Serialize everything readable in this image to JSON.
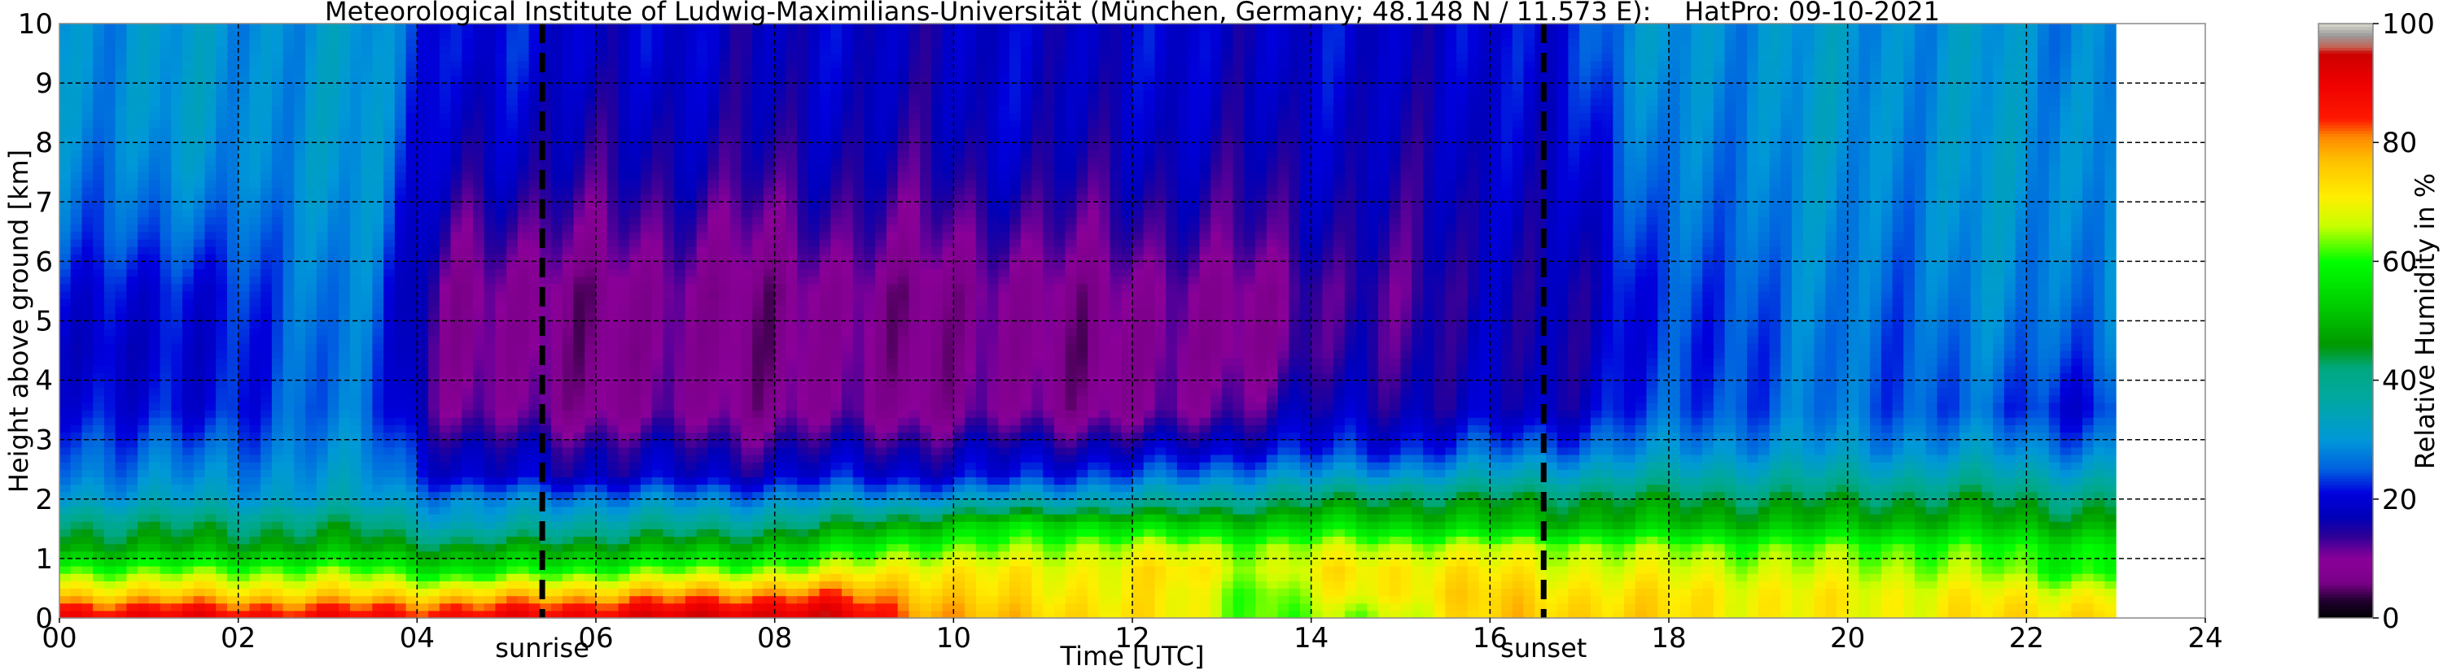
{
  "chart_data": {
    "type": "heatmap",
    "title": "Meteorological Institute of Ludwig-Maximilians-Universität (München, Germany; 48.148 N / 11.573 E):    HatPro: 09-10-2021",
    "xlabel": "Time [UTC]",
    "ylabel": "Height above ground [km]",
    "colorbar_label": "Relative Humidity in %",
    "xlim": [
      0,
      24
    ],
    "ylim": [
      0,
      10
    ],
    "clim": [
      0,
      100
    ],
    "x_ticks": [
      "00",
      "02",
      "04",
      "06",
      "08",
      "10",
      "12",
      "14",
      "16",
      "18",
      "20",
      "22",
      "24"
    ],
    "x_tick_values": [
      0,
      2,
      4,
      6,
      8,
      10,
      12,
      14,
      16,
      18,
      20,
      22,
      24
    ],
    "y_ticks": [
      "0",
      "1",
      "2",
      "3",
      "4",
      "5",
      "6",
      "7",
      "8",
      "9",
      "10"
    ],
    "colorbar_ticks": [
      "0",
      "20",
      "40",
      "60",
      "80",
      "100"
    ],
    "grid": true,
    "annotations": [
      {
        "label": "sunrise",
        "time": 5.4
      },
      {
        "label": "sunset",
        "time": 16.6
      }
    ],
    "data_time_range": [
      0,
      23
    ],
    "heights_km": [
      0.1,
      0.4,
      0.8,
      1.2,
      1.6,
      2.0,
      2.4,
      2.8,
      3.5,
      4.5,
      5.5,
      6.5,
      7.5,
      8.5,
      9.5
    ],
    "hour_columns": [
      [
        88,
        75,
        62,
        48,
        42,
        32,
        28,
        26,
        22,
        20,
        22,
        26,
        28,
        30,
        30
      ],
      [
        88,
        75,
        62,
        48,
        42,
        32,
        28,
        25,
        19,
        18,
        19,
        24,
        28,
        30,
        30
      ],
      [
        86,
        74,
        63,
        48,
        42,
        32,
        30,
        28,
        26,
        26,
        27,
        28,
        30,
        30,
        30
      ],
      [
        86,
        74,
        62,
        48,
        42,
        32,
        30,
        28,
        25,
        25,
        26,
        28,
        29,
        30,
        30
      ],
      [
        86,
        74,
        56,
        45,
        32,
        28,
        18,
        16,
        10,
        8,
        8,
        12,
        16,
        18,
        20
      ],
      [
        88,
        76,
        60,
        47,
        36,
        28,
        18,
        16,
        9,
        8,
        8,
        12,
        16,
        18,
        20
      ],
      [
        90,
        78,
        62,
        48,
        38,
        28,
        18,
        16,
        9,
        8,
        8,
        12,
        15,
        17,
        19
      ],
      [
        92,
        80,
        64,
        50,
        38,
        28,
        18,
        15,
        9,
        8,
        8,
        11,
        15,
        17,
        18
      ],
      [
        92,
        82,
        66,
        54,
        42,
        30,
        20,
        16,
        9,
        8,
        8,
        12,
        15,
        17,
        18
      ],
      [
        82,
        78,
        72,
        62,
        48,
        30,
        20,
        16,
        9,
        8,
        8,
        12,
        15,
        17,
        18
      ],
      [
        75,
        72,
        70,
        62,
        54,
        32,
        20,
        17,
        9,
        8,
        8,
        12,
        16,
        18,
        18
      ],
      [
        74,
        72,
        70,
        66,
        55,
        34,
        24,
        18,
        9,
        8,
        9,
        13,
        16,
        18,
        19
      ],
      [
        70,
        70,
        72,
        66,
        52,
        36,
        25,
        18,
        9,
        8,
        9,
        13,
        16,
        18,
        19
      ],
      [
        62,
        62,
        66,
        64,
        52,
        40,
        30,
        22,
        15,
        10,
        10,
        14,
        16,
        18,
        19
      ],
      [
        64,
        70,
        72,
        66,
        54,
        44,
        30,
        22,
        17,
        14,
        13,
        15,
        17,
        18,
        19
      ],
      [
        72,
        74,
        72,
        66,
        52,
        44,
        32,
        24,
        17,
        16,
        15,
        16,
        17,
        18,
        19
      ],
      [
        76,
        74,
        70,
        66,
        50,
        45,
        34,
        26,
        17,
        16,
        16,
        17,
        18,
        19,
        20
      ],
      [
        74,
        72,
        68,
        64,
        50,
        45,
        35,
        28,
        22,
        20,
        20,
        22,
        24,
        26,
        28
      ],
      [
        72,
        72,
        68,
        63,
        50,
        44,
        36,
        30,
        25,
        24,
        25,
        27,
        28,
        29,
        30
      ],
      [
        70,
        70,
        66,
        62,
        50,
        44,
        36,
        30,
        26,
        26,
        27,
        28,
        29,
        30,
        30
      ],
      [
        70,
        70,
        66,
        62,
        50,
        44,
        36,
        30,
        26,
        26,
        27,
        28,
        29,
        30,
        30
      ],
      [
        72,
        70,
        64,
        60,
        50,
        44,
        36,
        30,
        24,
        26,
        28,
        29,
        30,
        30,
        30
      ],
      [
        74,
        70,
        60,
        58,
        48,
        42,
        34,
        28,
        22,
        26,
        28,
        29,
        30,
        30,
        29
      ]
    ],
    "colormap": [
      [
        0,
        "#000000"
      ],
      [
        3,
        "#200030"
      ],
      [
        6,
        "#7a0088"
      ],
      [
        10,
        "#8a0098"
      ],
      [
        14,
        "#2a0098"
      ],
      [
        17,
        "#0000b8"
      ],
      [
        21,
        "#0000dd"
      ],
      [
        25,
        "#0060e0"
      ],
      [
        30,
        "#0098d8"
      ],
      [
        37,
        "#00a8a0"
      ],
      [
        42,
        "#00a880"
      ],
      [
        46,
        "#009800"
      ],
      [
        52,
        "#00c800"
      ],
      [
        60,
        "#00ff00"
      ],
      [
        66,
        "#c8ff00"
      ],
      [
        71,
        "#ffee00"
      ],
      [
        77,
        "#ffc000"
      ],
      [
        81,
        "#ff8800"
      ],
      [
        84,
        "#ff1800"
      ],
      [
        90,
        "#ee0000"
      ],
      [
        95,
        "#cc0000"
      ],
      [
        96,
        "#c86050"
      ],
      [
        98,
        "#999999"
      ],
      [
        100,
        "#d8d8cc"
      ]
    ]
  }
}
